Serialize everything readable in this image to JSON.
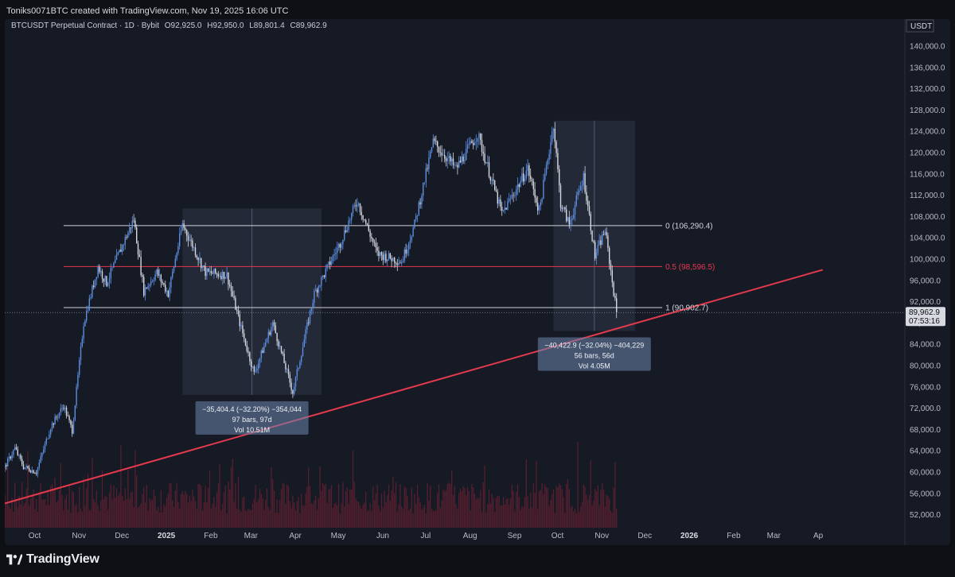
{
  "credit": "Toniks0071BTC created with TradingView.com, Nov 19, 2025 16:06 UTC",
  "header": {
    "symbol": "BTCUSDT Perpetual Contract · 1D · Bybit",
    "open": "O92,925.0",
    "high": "H92,950.0",
    "low": "L89,801.4",
    "close": "C89,962.9"
  },
  "price_axis": {
    "currency": "USDT",
    "last_price": "89,962.9",
    "countdown": "07:53:16"
  },
  "brand": "TradingView",
  "colors": {
    "background": "#161a25",
    "candle": "#c8ccd6",
    "trend_line": "#e5394d",
    "fib_mid": "#e5394d",
    "fib_line": "#d0d3da",
    "measure_box": "#8da4c6",
    "volume": "#5a1f2e"
  },
  "chart_data": {
    "type": "candlestick",
    "title": "BTCUSDT Perpetual Contract · 1D · Bybit",
    "xlabel": "",
    "ylabel": "",
    "ylim": [
      50000,
      144000
    ],
    "x_ticks": [
      "Oct",
      "Nov",
      "Dec",
      "2025",
      "Feb",
      "Mar",
      "Apr",
      "May",
      "Jun",
      "Jul",
      "Aug",
      "Sep",
      "Oct",
      "Nov",
      "Dec",
      "2026",
      "Feb",
      "Mar",
      "Ap"
    ],
    "y_ticks": [
      "52,000.0",
      "56,000.0",
      "60,000.0",
      "64,000.0",
      "68,000.0",
      "72,000.0",
      "76,000.0",
      "80,000.0",
      "84,000.0",
      "88,000.0",
      "92,000.0",
      "96,000.0",
      "100,000.0",
      "104,000.0",
      "108,000.0",
      "112,000.0",
      "116,000.0",
      "120,000.0",
      "124,000.0",
      "128,000.0",
      "132,000.0",
      "136,000.0",
      "140,000.0"
    ],
    "price_path": [
      [
        "2024-09-14",
        59000
      ],
      [
        "2024-09-25",
        64500
      ],
      [
        "2024-10-01",
        61000
      ],
      [
        "2024-10-10",
        60000
      ],
      [
        "2024-10-20",
        68500
      ],
      [
        "2024-10-29",
        72500
      ],
      [
        "2024-11-04",
        67800
      ],
      [
        "2024-11-12",
        88000
      ],
      [
        "2024-11-22",
        98500
      ],
      [
        "2024-11-28",
        95500
      ],
      [
        "2024-12-05",
        100000
      ],
      [
        "2024-12-17",
        107500
      ],
      [
        "2024-12-24",
        94000
      ],
      [
        "2025-01-02",
        97500
      ],
      [
        "2025-01-10",
        93500
      ],
      [
        "2025-01-20",
        106500
      ],
      [
        "2025-01-28",
        102000
      ],
      [
        "2025-02-05",
        97500
      ],
      [
        "2025-02-20",
        97000
      ],
      [
        "2025-03-03",
        86000
      ],
      [
        "2025-03-11",
        78500
      ],
      [
        "2025-03-24",
        88000
      ],
      [
        "2025-04-07",
        75000
      ],
      [
        "2025-04-22",
        93500
      ],
      [
        "2025-05-10",
        103000
      ],
      [
        "2025-05-22",
        111000
      ],
      [
        "2025-06-05",
        101000
      ],
      [
        "2025-06-22",
        99500
      ],
      [
        "2025-07-01",
        106500
      ],
      [
        "2025-07-14",
        122000
      ],
      [
        "2025-07-30",
        117000
      ],
      [
        "2025-08-14",
        123500
      ],
      [
        "2025-08-31",
        108500
      ],
      [
        "2025-09-18",
        117000
      ],
      [
        "2025-09-26",
        109000
      ],
      [
        "2025-10-06",
        125500
      ],
      [
        "2025-10-11",
        110500
      ],
      [
        "2025-10-17",
        106500
      ],
      [
        "2025-10-27",
        115500
      ],
      [
        "2025-11-04",
        100500
      ],
      [
        "2025-11-11",
        105500
      ],
      [
        "2025-11-19",
        89962.9
      ]
    ],
    "fibonacci": [
      {
        "level": "0",
        "value": 106290.4,
        "label": "0 (106,290.4)"
      },
      {
        "level": "0.5",
        "value": 98596.5,
        "label": "0.5 (98,596.5)"
      },
      {
        "level": "1",
        "value": 90902.7,
        "label": "1 (90,902.7)"
      }
    ],
    "fib_x_range": [
      "2024-10-29",
      "2025-11-12"
    ],
    "trend_line": {
      "start": [
        "2024-09-10",
        53500
      ],
      "end": [
        "2026-04-12",
        98000
      ]
    },
    "measurements": [
      {
        "range": [
          "2025-01-20",
          "2025-04-27"
        ],
        "price_range": [
          74500,
          109500
        ],
        "lines": [
          "−35,404.4 (−32.20%) −354,044",
          "97 bars, 97d",
          "Vol 10.51M"
        ]
      },
      {
        "range": [
          "2025-10-06",
          "2025-12-02"
        ],
        "price_range": [
          86500,
          126000
        ],
        "lines": [
          "−40,422.9 (−32.04%) −404,229",
          "56 bars, 56d",
          "Vol 4.05M"
        ]
      }
    ],
    "grid": false
  }
}
